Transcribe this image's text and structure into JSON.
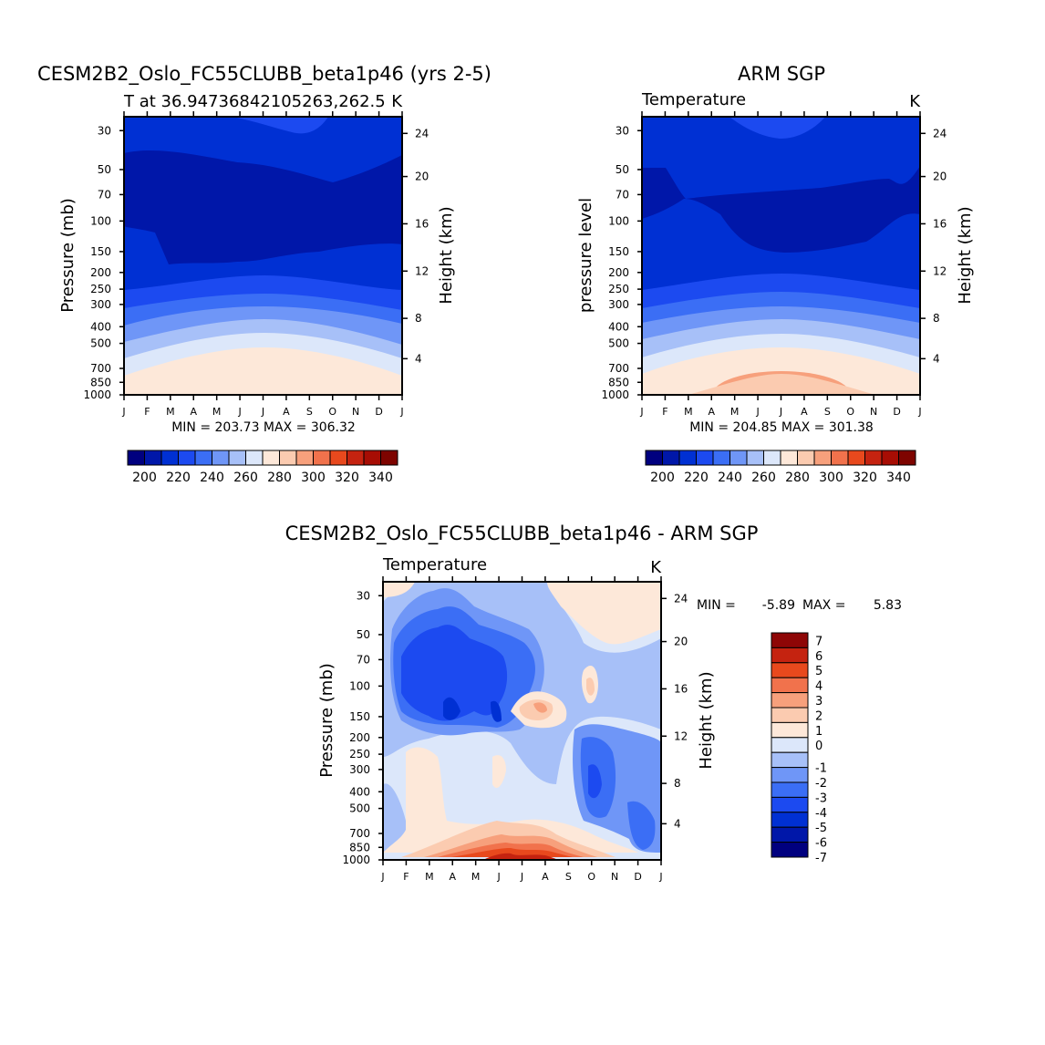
{
  "colors": {
    "levels_absolute": [
      "#00007f",
      "#0017a9",
      "#0030d3",
      "#1c4af0",
      "#3b6ef5",
      "#6f96f7",
      "#a7c0f8",
      "#dce7fa",
      "#fde8d9",
      "#fbcbb0",
      "#f7a07c",
      "#f1724c",
      "#e8491d",
      "#c52310",
      "#a70d04",
      "#7e0400"
    ],
    "levels_diff": [
      "#00007f",
      "#0017a9",
      "#0030d3",
      "#1c4af0",
      "#3b6ef5",
      "#6f96f7",
      "#a7c0f8",
      "#dce7fa",
      "#fde8d9",
      "#fbcbb0",
      "#f7a07c",
      "#f1724c",
      "#e8491d",
      "#c52310",
      "#8e0606"
    ]
  },
  "chart_data": [
    {
      "type": "heatmap",
      "title": "CESM2B2_Oslo_FC55CLUBB_beta1p46 (yrs 2-5)",
      "subtitle_left": "T at 36.94736842105263,262.5",
      "subtitle_right": "K",
      "ylabel": "Pressure (mb)",
      "ylabel_right": "Height (km)",
      "stats": "MIN = 203.73 MAX = 306.32",
      "min": 203.73,
      "max": 306.32,
      "x_ticks": [
        "J",
        "F",
        "M",
        "A",
        "M",
        "J",
        "J",
        "A",
        "S",
        "O",
        "N",
        "D",
        "J"
      ],
      "y_ticks": [
        "30",
        "50",
        "70",
        "100",
        "150",
        "200",
        "250",
        "300",
        "400",
        "500",
        "700",
        "850",
        "1000"
      ],
      "y_ticks_right": [
        "24",
        "20",
        "16",
        "12",
        "8",
        "4"
      ],
      "colorbar_labels": [
        "200",
        "220",
        "240",
        "260",
        "280",
        "300",
        "320",
        "340"
      ],
      "colorbar_levels": [
        195,
        200,
        205,
        210,
        215,
        220,
        225,
        230,
        235,
        240,
        245,
        250,
        255,
        260,
        265,
        270,
        275,
        280,
        285,
        290,
        295,
        300,
        305,
        310,
        315,
        320,
        325,
        330,
        335,
        340,
        345
      ]
    },
    {
      "type": "heatmap",
      "title": "ARM SGP",
      "subtitle_left": "Temperature",
      "subtitle_right": "K",
      "ylabel": "pressure level",
      "ylabel_right": "Height (km)",
      "stats": "MIN = 204.85 MAX = 301.38",
      "min": 204.85,
      "max": 301.38,
      "x_ticks": [
        "J",
        "F",
        "M",
        "A",
        "M",
        "J",
        "J",
        "A",
        "S",
        "O",
        "N",
        "D",
        "J"
      ],
      "y_ticks": [
        "30",
        "50",
        "70",
        "100",
        "150",
        "200",
        "250",
        "300",
        "400",
        "500",
        "700",
        "850",
        "1000"
      ],
      "y_ticks_right": [
        "24",
        "20",
        "16",
        "12",
        "8",
        "4"
      ],
      "colorbar_labels": [
        "200",
        "220",
        "240",
        "260",
        "280",
        "300",
        "320",
        "340"
      ]
    },
    {
      "type": "heatmap",
      "title": "CESM2B2_Oslo_FC55CLUBB_beta1p46 - ARM SGP",
      "subtitle_left": "Temperature",
      "subtitle_right": "K",
      "ylabel": "Pressure (mb)",
      "ylabel_right": "Height (km)",
      "stats_min_label": "MIN =",
      "stats_min": "-5.89",
      "stats_max_label": "MAX =",
      "stats_max": "5.83",
      "x_ticks": [
        "J",
        "F",
        "M",
        "A",
        "M",
        "J",
        "J",
        "A",
        "S",
        "O",
        "N",
        "D",
        "J"
      ],
      "y_ticks": [
        "30",
        "50",
        "70",
        "100",
        "150",
        "200",
        "250",
        "300",
        "400",
        "500",
        "700",
        "850",
        "1000"
      ],
      "y_ticks_right": [
        "24",
        "20",
        "16",
        "12",
        "8",
        "4"
      ],
      "colorbar_labels": [
        "7",
        "6",
        "5",
        "4",
        "3",
        "2",
        "1",
        "0",
        "-1",
        "-2",
        "-3",
        "-4",
        "-5",
        "-6",
        "-7"
      ]
    }
  ]
}
